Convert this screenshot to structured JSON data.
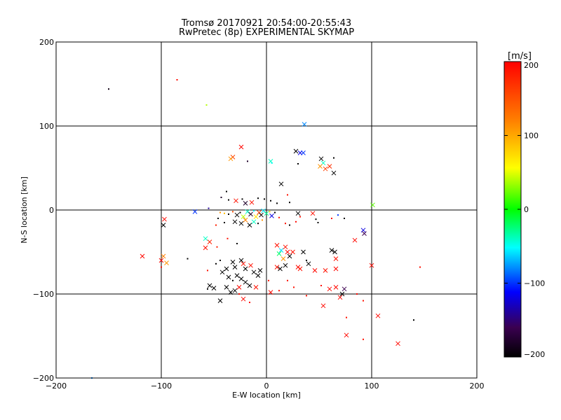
{
  "chart_data": {
    "type": "scatter",
    "title": "Tromsø 20170921 20:54:00-20:55:43",
    "subtitle": "RwPretec (8p) EXPERIMENTAL SKYMAP",
    "xlabel": "E-W location [km]",
    "ylabel": "N-S location [km]",
    "xlim": [
      -200,
      200
    ],
    "ylim": [
      -200,
      200
    ],
    "xticks": [
      -200,
      -100,
      0,
      100,
      200
    ],
    "yticks": [
      -200,
      -100,
      0,
      100,
      200
    ],
    "grid": true,
    "colorbar": {
      "label": "[m/s]",
      "range": [
        -200,
        200
      ],
      "ticks": [
        200,
        100,
        0,
        -100,
        -200
      ]
    },
    "points": [
      {
        "x": -150,
        "y": 144,
        "v": -190,
        "m": "dot"
      },
      {
        "x": -85,
        "y": 155,
        "v": 195,
        "m": "dot"
      },
      {
        "x": -57,
        "y": 125,
        "v": 40,
        "m": "dot"
      },
      {
        "x": 36,
        "y": 102,
        "v": -80,
        "m": "x"
      },
      {
        "x": -24,
        "y": 75,
        "v": 195,
        "m": "x"
      },
      {
        "x": -32,
        "y": 63,
        "v": 160,
        "m": "x"
      },
      {
        "x": -34,
        "y": 61,
        "v": 110,
        "m": "x"
      },
      {
        "x": -18,
        "y": 58,
        "v": -180,
        "m": "dot"
      },
      {
        "x": 4,
        "y": 58,
        "v": -40,
        "m": "x"
      },
      {
        "x": 5,
        "y": 56,
        "v": -50,
        "m": "dot"
      },
      {
        "x": 28,
        "y": 70,
        "v": -200,
        "m": "x"
      },
      {
        "x": 32,
        "y": 68,
        "v": -120,
        "m": "x"
      },
      {
        "x": 35,
        "y": 68,
        "v": -100,
        "m": "x"
      },
      {
        "x": 52,
        "y": 61,
        "v": -200,
        "m": "x"
      },
      {
        "x": 64,
        "y": 62,
        "v": -200,
        "m": "dot"
      },
      {
        "x": 54,
        "y": 56,
        "v": -40,
        "m": "x"
      },
      {
        "x": 51,
        "y": 52,
        "v": 110,
        "m": "x"
      },
      {
        "x": 56,
        "y": 49,
        "v": 160,
        "m": "x"
      },
      {
        "x": 60,
        "y": 52,
        "v": 170,
        "m": "x"
      },
      {
        "x": 64,
        "y": 44,
        "v": -200,
        "m": "x"
      },
      {
        "x": 30,
        "y": 55,
        "v": -200,
        "m": "dot"
      },
      {
        "x": 14,
        "y": 31,
        "v": -200,
        "m": "x"
      },
      {
        "x": -38,
        "y": 22,
        "v": -200,
        "m": "dot"
      },
      {
        "x": -43,
        "y": 15,
        "v": -180,
        "m": "dot"
      },
      {
        "x": -36,
        "y": 12,
        "v": -200,
        "m": "dot"
      },
      {
        "x": -29,
        "y": 11,
        "v": 190,
        "m": "x"
      },
      {
        "x": -23,
        "y": 13,
        "v": -200,
        "m": "dot"
      },
      {
        "x": -20,
        "y": 8,
        "v": -180,
        "m": "x"
      },
      {
        "x": -14,
        "y": 9,
        "v": 190,
        "m": "x"
      },
      {
        "x": -8,
        "y": 14,
        "v": -200,
        "m": "dot"
      },
      {
        "x": -2,
        "y": 13,
        "v": -200,
        "m": "dot"
      },
      {
        "x": 4,
        "y": 11,
        "v": -200,
        "m": "dot"
      },
      {
        "x": 10,
        "y": 8,
        "v": -200,
        "m": "dot"
      },
      {
        "x": 20,
        "y": 18,
        "v": 190,
        "m": "dot"
      },
      {
        "x": 22,
        "y": 9,
        "v": -200,
        "m": "dot"
      },
      {
        "x": -55,
        "y": 2,
        "v": -140,
        "m": "dot"
      },
      {
        "x": -68,
        "y": -2,
        "v": -100,
        "m": "x"
      },
      {
        "x": -44,
        "y": -3,
        "v": 110,
        "m": "dot"
      },
      {
        "x": -40,
        "y": -4,
        "v": 90,
        "m": "dot"
      },
      {
        "x": -36,
        "y": -5,
        "v": -200,
        "m": "dot"
      },
      {
        "x": -32,
        "y": -2,
        "v": 150,
        "m": "dot"
      },
      {
        "x": -28,
        "y": -6,
        "v": -200,
        "m": "x"
      },
      {
        "x": -25,
        "y": -3,
        "v": -200,
        "m": "dot"
      },
      {
        "x": -22,
        "y": -8,
        "v": 40,
        "m": "x"
      },
      {
        "x": -18,
        "y": -2,
        "v": -40,
        "m": "x"
      },
      {
        "x": -15,
        "y": -5,
        "v": -180,
        "m": "x"
      },
      {
        "x": -12,
        "y": -1,
        "v": -50,
        "m": "dot"
      },
      {
        "x": -10,
        "y": -8,
        "v": 70,
        "m": "x"
      },
      {
        "x": -7,
        "y": -3,
        "v": 160,
        "m": "x"
      },
      {
        "x": -5,
        "y": -6,
        "v": -200,
        "m": "x"
      },
      {
        "x": -3,
        "y": -1,
        "v": -60,
        "m": "x"
      },
      {
        "x": 0,
        "y": -4,
        "v": -30,
        "m": "x"
      },
      {
        "x": 3,
        "y": -2,
        "v": 90,
        "m": "dot"
      },
      {
        "x": 5,
        "y": -7,
        "v": -120,
        "m": "x"
      },
      {
        "x": 8,
        "y": -3,
        "v": -200,
        "m": "dot"
      },
      {
        "x": 12,
        "y": -9,
        "v": 190,
        "m": "dot"
      },
      {
        "x": -30,
        "y": -14,
        "v": -200,
        "m": "x"
      },
      {
        "x": -24,
        "y": -16,
        "v": -200,
        "m": "x"
      },
      {
        "x": -20,
        "y": -12,
        "v": 120,
        "m": "x"
      },
      {
        "x": -16,
        "y": -18,
        "v": -200,
        "m": "x"
      },
      {
        "x": -12,
        "y": -14,
        "v": -40,
        "m": "x"
      },
      {
        "x": -8,
        "y": -16,
        "v": -200,
        "m": "dot"
      },
      {
        "x": -4,
        "y": -12,
        "v": 110,
        "m": "dot"
      },
      {
        "x": -40,
        "y": -15,
        "v": -200,
        "m": "dot"
      },
      {
        "x": -46,
        "y": -10,
        "v": -200,
        "m": "dot"
      },
      {
        "x": -48,
        "y": -18,
        "v": 180,
        "m": "dot"
      },
      {
        "x": 18,
        "y": -16,
        "v": 190,
        "m": "dot"
      },
      {
        "x": 22,
        "y": -18,
        "v": -200,
        "m": "dot"
      },
      {
        "x": 28,
        "y": -14,
        "v": 195,
        "m": "dot"
      },
      {
        "x": 30,
        "y": -4,
        "v": -200,
        "m": "x"
      },
      {
        "x": 32,
        "y": -8,
        "v": 190,
        "m": "dot"
      },
      {
        "x": 44,
        "y": -4,
        "v": 190,
        "m": "x"
      },
      {
        "x": 47,
        "y": -11,
        "v": -200,
        "m": "dot"
      },
      {
        "x": 49,
        "y": -15,
        "v": -200,
        "m": "dot"
      },
      {
        "x": 62,
        "y": -10,
        "v": 190,
        "m": "dot"
      },
      {
        "x": 68,
        "y": -6,
        "v": -100,
        "m": "dot"
      },
      {
        "x": 74,
        "y": -10,
        "v": -200,
        "m": "dot"
      },
      {
        "x": 101,
        "y": 6,
        "v": 20,
        "m": "x"
      },
      {
        "x": -97,
        "y": -11,
        "v": 195,
        "m": "x"
      },
      {
        "x": -98,
        "y": -18,
        "v": -200,
        "m": "x"
      },
      {
        "x": -58,
        "y": -34,
        "v": -40,
        "m": "x"
      },
      {
        "x": -54,
        "y": -38,
        "v": 180,
        "m": "x"
      },
      {
        "x": -58,
        "y": -45,
        "v": 190,
        "m": "x"
      },
      {
        "x": -47,
        "y": -44,
        "v": 180,
        "m": "dot"
      },
      {
        "x": -37,
        "y": -34,
        "v": 190,
        "m": "dot"
      },
      {
        "x": -28,
        "y": -40,
        "v": -200,
        "m": "dot"
      },
      {
        "x": -118,
        "y": -55,
        "v": 195,
        "m": "x"
      },
      {
        "x": -98,
        "y": -55,
        "v": 120,
        "m": "x"
      },
      {
        "x": -95,
        "y": -63,
        "v": 110,
        "m": "x"
      },
      {
        "x": -100,
        "y": -60,
        "v": 195,
        "m": "x"
      },
      {
        "x": -100,
        "y": -68,
        "v": 190,
        "m": "dot"
      },
      {
        "x": -75,
        "y": -58,
        "v": -200,
        "m": "dot"
      },
      {
        "x": 10,
        "y": -42,
        "v": 190,
        "m": "x"
      },
      {
        "x": 14,
        "y": -48,
        "v": -60,
        "m": "x"
      },
      {
        "x": 12,
        "y": -52,
        "v": -20,
        "m": "x"
      },
      {
        "x": 18,
        "y": -44,
        "v": 190,
        "m": "x"
      },
      {
        "x": 20,
        "y": -50,
        "v": 195,
        "m": "x"
      },
      {
        "x": 22,
        "y": -55,
        "v": -200,
        "m": "x"
      },
      {
        "x": 16,
        "y": -58,
        "v": 110,
        "m": "x"
      },
      {
        "x": 25,
        "y": -50,
        "v": 190,
        "m": "x"
      },
      {
        "x": 35,
        "y": -50,
        "v": -200,
        "m": "x"
      },
      {
        "x": 38,
        "y": -60,
        "v": -200,
        "m": "dot"
      },
      {
        "x": 40,
        "y": -64,
        "v": -200,
        "m": "x"
      },
      {
        "x": 62,
        "y": -48,
        "v": -200,
        "m": "x"
      },
      {
        "x": 65,
        "y": -50,
        "v": -200,
        "m": "x"
      },
      {
        "x": 66,
        "y": -58,
        "v": 190,
        "m": "x"
      },
      {
        "x": 84,
        "y": -36,
        "v": 195,
        "m": "x"
      },
      {
        "x": 92,
        "y": -24,
        "v": -120,
        "m": "x"
      },
      {
        "x": 93,
        "y": -28,
        "v": -160,
        "m": "x"
      },
      {
        "x": 100,
        "y": -66,
        "v": 195,
        "m": "x"
      },
      {
        "x": 146,
        "y": -68,
        "v": 190,
        "m": "dot"
      },
      {
        "x": -32,
        "y": -62,
        "v": -200,
        "m": "x"
      },
      {
        "x": -30,
        "y": -68,
        "v": -200,
        "m": "x"
      },
      {
        "x": -24,
        "y": -60,
        "v": -200,
        "m": "x"
      },
      {
        "x": -22,
        "y": -64,
        "v": 190,
        "m": "x"
      },
      {
        "x": -20,
        "y": -70,
        "v": -200,
        "m": "x"
      },
      {
        "x": -15,
        "y": -66,
        "v": 190,
        "m": "x"
      },
      {
        "x": -12,
        "y": -74,
        "v": -200,
        "m": "x"
      },
      {
        "x": -8,
        "y": -78,
        "v": -200,
        "m": "x"
      },
      {
        "x": -6,
        "y": -72,
        "v": -200,
        "m": "x"
      },
      {
        "x": -38,
        "y": -70,
        "v": -200,
        "m": "x"
      },
      {
        "x": -42,
        "y": -74,
        "v": -200,
        "m": "x"
      },
      {
        "x": -36,
        "y": -80,
        "v": -200,
        "m": "x"
      },
      {
        "x": -32,
        "y": -84,
        "v": -200,
        "m": "dot"
      },
      {
        "x": -28,
        "y": -78,
        "v": -200,
        "m": "x"
      },
      {
        "x": -24,
        "y": -82,
        "v": -200,
        "m": "x"
      },
      {
        "x": -44,
        "y": -60,
        "v": -200,
        "m": "dot"
      },
      {
        "x": -48,
        "y": -64,
        "v": -200,
        "m": "dot"
      },
      {
        "x": -56,
        "y": -72,
        "v": 190,
        "m": "dot"
      },
      {
        "x": 10,
        "y": -68,
        "v": 190,
        "m": "x"
      },
      {
        "x": 13,
        "y": -70,
        "v": -200,
        "m": "x"
      },
      {
        "x": 18,
        "y": -66,
        "v": -200,
        "m": "x"
      },
      {
        "x": 30,
        "y": -68,
        "v": 195,
        "m": "x"
      },
      {
        "x": 32,
        "y": -70,
        "v": 190,
        "m": "x"
      },
      {
        "x": 46,
        "y": -72,
        "v": 195,
        "m": "x"
      },
      {
        "x": 56,
        "y": -72,
        "v": 190,
        "m": "x"
      },
      {
        "x": 66,
        "y": -70,
        "v": 195,
        "m": "x"
      },
      {
        "x": -54,
        "y": -90,
        "v": -200,
        "m": "x"
      },
      {
        "x": -50,
        "y": -93,
        "v": -200,
        "m": "x"
      },
      {
        "x": -56,
        "y": -94,
        "v": -200,
        "m": "dot"
      },
      {
        "x": -38,
        "y": -92,
        "v": -200,
        "m": "x"
      },
      {
        "x": -34,
        "y": -98,
        "v": -200,
        "m": "x"
      },
      {
        "x": -30,
        "y": -96,
        "v": -200,
        "m": "x"
      },
      {
        "x": -26,
        "y": -92,
        "v": 195,
        "m": "x"
      },
      {
        "x": -20,
        "y": -86,
        "v": -200,
        "m": "x"
      },
      {
        "x": -16,
        "y": -90,
        "v": -200,
        "m": "x"
      },
      {
        "x": -10,
        "y": -92,
        "v": 190,
        "m": "x"
      },
      {
        "x": -44,
        "y": -108,
        "v": -200,
        "m": "x"
      },
      {
        "x": -26,
        "y": -100,
        "v": 190,
        "m": "dot"
      },
      {
        "x": -22,
        "y": -106,
        "v": 195,
        "m": "x"
      },
      {
        "x": -16,
        "y": -110,
        "v": 190,
        "m": "dot"
      },
      {
        "x": 2,
        "y": -84,
        "v": 190,
        "m": "dot"
      },
      {
        "x": 4,
        "y": -98,
        "v": 195,
        "m": "x"
      },
      {
        "x": 12,
        "y": -96,
        "v": 190,
        "m": "dot"
      },
      {
        "x": 20,
        "y": -84,
        "v": 190,
        "m": "dot"
      },
      {
        "x": 26,
        "y": -92,
        "v": 190,
        "m": "dot"
      },
      {
        "x": 38,
        "y": -102,
        "v": 190,
        "m": "dot"
      },
      {
        "x": 52,
        "y": -90,
        "v": 190,
        "m": "dot"
      },
      {
        "x": 60,
        "y": -94,
        "v": 195,
        "m": "x"
      },
      {
        "x": 66,
        "y": -92,
        "v": 195,
        "m": "x"
      },
      {
        "x": 70,
        "y": -104,
        "v": 195,
        "m": "x"
      },
      {
        "x": 74,
        "y": -94,
        "v": -160,
        "m": "x"
      },
      {
        "x": 72,
        "y": -100,
        "v": -200,
        "m": "x"
      },
      {
        "x": 54,
        "y": -114,
        "v": 195,
        "m": "x"
      },
      {
        "x": 86,
        "y": -100,
        "v": 195,
        "m": "dot"
      },
      {
        "x": 92,
        "y": -108,
        "v": 190,
        "m": "dot"
      },
      {
        "x": 76,
        "y": -128,
        "v": 190,
        "m": "dot"
      },
      {
        "x": 76,
        "y": -149,
        "v": 195,
        "m": "x"
      },
      {
        "x": 92,
        "y": -154,
        "v": 190,
        "m": "dot"
      },
      {
        "x": 106,
        "y": -126,
        "v": 195,
        "m": "x"
      },
      {
        "x": 125,
        "y": -159,
        "v": 195,
        "m": "x"
      },
      {
        "x": 140,
        "y": -131,
        "v": -200,
        "m": "dot"
      },
      {
        "x": -166,
        "y": -200,
        "v": -80,
        "m": "dot"
      }
    ]
  }
}
